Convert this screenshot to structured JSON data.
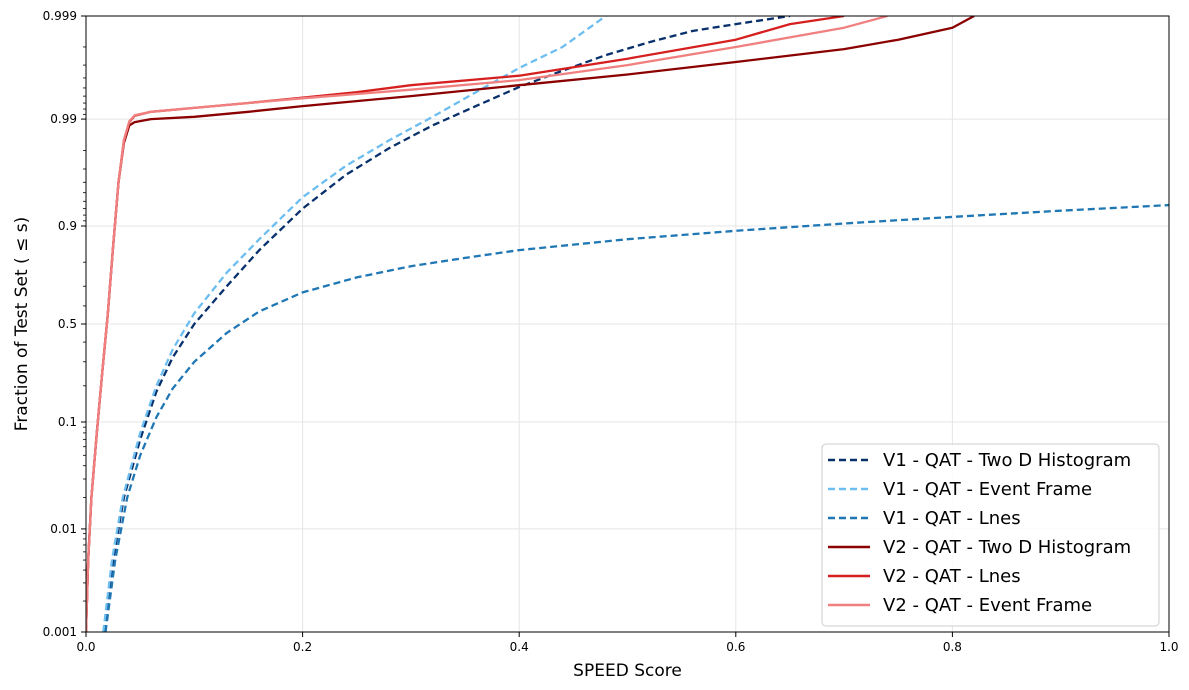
{
  "chart_data": {
    "type": "line",
    "title": "",
    "xlabel": "SPEED Score",
    "ylabel": "Fraction of Test Set ( ≤ s)",
    "xlim": [
      0.0,
      1.0
    ],
    "ylim": [
      0.001,
      0.999
    ],
    "yscale": "logit",
    "grid": true,
    "legend_position": "lower-right",
    "x_ticks": [
      0.0,
      0.2,
      0.4,
      0.6,
      0.8,
      1.0
    ],
    "x_tick_labels": [
      "0.0",
      "0.2",
      "0.4",
      "0.6",
      "0.8",
      "1.0"
    ],
    "y_ticks": [
      0.001,
      0.01,
      0.1,
      0.5,
      0.9,
      0.99,
      0.999
    ],
    "y_tick_labels": [
      "0.001",
      "0.01",
      "0.1",
      "0.5",
      "0.9",
      "0.99",
      "0.999"
    ],
    "series": [
      {
        "name": "V1 - QAT - Two D Histogram",
        "color": "#08306b",
        "style": "dashed",
        "x": [
          0.017,
          0.025,
          0.035,
          0.05,
          0.065,
          0.08,
          0.1,
          0.13,
          0.16,
          0.2,
          0.24,
          0.28,
          0.32,
          0.36,
          0.4,
          0.44,
          0.48,
          0.52,
          0.56,
          0.6,
          0.65
        ],
        "y": [
          0.001,
          0.005,
          0.02,
          0.07,
          0.18,
          0.32,
          0.5,
          0.7,
          0.84,
          0.93,
          0.966,
          0.981,
          0.9885,
          0.9925,
          0.9951,
          0.9966,
          0.9976,
          0.9982,
          0.9986,
          0.9988,
          0.999
        ]
      },
      {
        "name": "V1 - QAT - Event Frame",
        "color": "#6cbdf0",
        "style": "dashed",
        "x": [
          0.016,
          0.024,
          0.034,
          0.05,
          0.065,
          0.08,
          0.1,
          0.13,
          0.16,
          0.2,
          0.24,
          0.28,
          0.32,
          0.36,
          0.4,
          0.44,
          0.48
        ],
        "y": [
          0.001,
          0.005,
          0.02,
          0.08,
          0.2,
          0.36,
          0.56,
          0.76,
          0.87,
          0.945,
          0.972,
          0.984,
          0.9905,
          0.9945,
          0.9968,
          0.998,
          0.999
        ]
      },
      {
        "name": "V1 - QAT - Lnes",
        "color": "#1f77b4",
        "style": "dashed",
        "x": [
          0.018,
          0.027,
          0.038,
          0.05,
          0.065,
          0.08,
          0.1,
          0.13,
          0.16,
          0.2,
          0.25,
          0.3,
          0.35,
          0.4,
          0.5,
          0.6,
          0.7,
          0.8,
          0.9,
          1.0
        ],
        "y": [
          0.001,
          0.005,
          0.02,
          0.05,
          0.11,
          0.19,
          0.3,
          0.45,
          0.57,
          0.67,
          0.74,
          0.785,
          0.815,
          0.84,
          0.87,
          0.89,
          0.905,
          0.917,
          0.927,
          0.935
        ]
      },
      {
        "name": "V2 - QAT - Two D Histogram",
        "color": "#8b0000",
        "style": "solid",
        "x": [
          0.0,
          0.002,
          0.005,
          0.01,
          0.015,
          0.02,
          0.025,
          0.03,
          0.035,
          0.04,
          0.045,
          0.06,
          0.1,
          0.15,
          0.2,
          0.3,
          0.4,
          0.5,
          0.6,
          0.7,
          0.75,
          0.8,
          0.82
        ],
        "y": [
          0.001,
          0.005,
          0.02,
          0.08,
          0.25,
          0.55,
          0.85,
          0.96,
          0.983,
          0.9885,
          0.9893,
          0.99,
          0.9905,
          0.9915,
          0.9925,
          0.994,
          0.9953,
          0.9963,
          0.9972,
          0.9979,
          0.9983,
          0.9987,
          0.999
        ]
      },
      {
        "name": "V2 - QAT - Lnes",
        "color": "#d62020",
        "style": "solid",
        "x": [
          0.0,
          0.002,
          0.005,
          0.01,
          0.015,
          0.02,
          0.025,
          0.03,
          0.035,
          0.04,
          0.045,
          0.06,
          0.1,
          0.15,
          0.2,
          0.25,
          0.3,
          0.4,
          0.5,
          0.6,
          0.65,
          0.7
        ],
        "y": [
          0.001,
          0.005,
          0.02,
          0.08,
          0.25,
          0.55,
          0.85,
          0.96,
          0.984,
          0.9893,
          0.9907,
          0.9915,
          0.9922,
          0.993,
          0.9938,
          0.9945,
          0.9953,
          0.9962,
          0.9974,
          0.9983,
          0.9988,
          0.999
        ]
      },
      {
        "name": "V2 - QAT - Event Frame",
        "color": "#f08080",
        "style": "solid",
        "x": [
          0.0,
          0.002,
          0.005,
          0.01,
          0.015,
          0.02,
          0.025,
          0.03,
          0.035,
          0.04,
          0.045,
          0.06,
          0.1,
          0.15,
          0.2,
          0.3,
          0.4,
          0.5,
          0.6,
          0.7,
          0.74
        ],
        "y": [
          0.001,
          0.005,
          0.02,
          0.08,
          0.25,
          0.55,
          0.85,
          0.96,
          0.984,
          0.9895,
          0.9908,
          0.9915,
          0.9922,
          0.993,
          0.9937,
          0.9948,
          0.9958,
          0.997,
          0.998,
          0.9987,
          0.999
        ]
      }
    ]
  }
}
